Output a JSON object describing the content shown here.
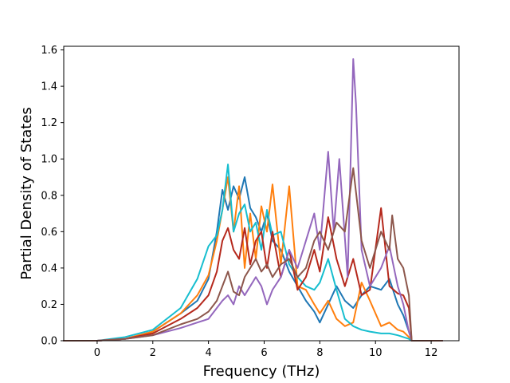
{
  "chart_data": {
    "type": "line",
    "title": "",
    "xlabel": "Frequency (THz)",
    "ylabel": "Partial Density of States",
    "xlim": [
      -1.2,
      13.0
    ],
    "ylim": [
      0.0,
      1.62
    ],
    "grid": false,
    "legend": "none",
    "x_ticks": [
      0,
      2,
      4,
      6,
      8,
      10,
      12
    ],
    "x_tick_labels": [
      "0",
      "2",
      "4",
      "6",
      "8",
      "10",
      "12"
    ],
    "y_ticks": [
      0.0,
      0.2,
      0.4,
      0.6,
      0.8,
      1.0,
      1.2,
      1.4,
      1.6
    ],
    "y_tick_labels": [
      "0.0",
      "0.2",
      "0.4",
      "0.6",
      "0.8",
      "1.0",
      "1.2",
      "1.4",
      "1.6"
    ],
    "series": [
      {
        "color": "#1f77b4",
        "x": [
          -1.2,
          0,
          1,
          2,
          3,
          3.6,
          4.0,
          4.3,
          4.5,
          4.7,
          4.9,
          5.1,
          5.3,
          5.5,
          5.7,
          5.9,
          6.1,
          6.3,
          6.6,
          6.9,
          7.2,
          7.5,
          7.8,
          8.0,
          8.3,
          8.6,
          8.9,
          9.2,
          9.5,
          9.8,
          10.2,
          10.5,
          10.8,
          11.0,
          11.2,
          11.3,
          12.4
        ],
        "y": [
          0.0,
          0.0,
          0.01,
          0.05,
          0.15,
          0.22,
          0.34,
          0.6,
          0.83,
          0.72,
          0.85,
          0.78,
          0.9,
          0.73,
          0.68,
          0.6,
          0.7,
          0.55,
          0.5,
          0.38,
          0.3,
          0.22,
          0.16,
          0.1,
          0.2,
          0.3,
          0.22,
          0.18,
          0.25,
          0.3,
          0.28,
          0.34,
          0.2,
          0.14,
          0.05,
          0.0,
          0.0
        ]
      },
      {
        "color": "#ff7f0e",
        "x": [
          -1.2,
          0,
          1,
          2,
          3,
          3.6,
          4.0,
          4.3,
          4.5,
          4.7,
          4.9,
          5.1,
          5.3,
          5.5,
          5.7,
          5.9,
          6.1,
          6.3,
          6.6,
          6.9,
          7.2,
          7.5,
          7.8,
          8.0,
          8.3,
          8.6,
          8.9,
          9.2,
          9.5,
          9.8,
          10.2,
          10.5,
          10.8,
          11.0,
          11.2,
          11.3,
          12.4
        ],
        "y": [
          0.0,
          0.0,
          0.01,
          0.05,
          0.15,
          0.25,
          0.36,
          0.55,
          0.72,
          0.9,
          0.6,
          0.85,
          0.4,
          0.7,
          0.45,
          0.74,
          0.6,
          0.86,
          0.42,
          0.85,
          0.3,
          0.28,
          0.2,
          0.15,
          0.22,
          0.12,
          0.08,
          0.1,
          0.32,
          0.22,
          0.08,
          0.1,
          0.06,
          0.05,
          0.02,
          0.0,
          0.0
        ]
      },
      {
        "color": "#17becf",
        "x": [
          -1.2,
          0,
          1,
          2,
          3,
          3.6,
          4.0,
          4.3,
          4.5,
          4.7,
          4.9,
          5.1,
          5.3,
          5.5,
          5.7,
          5.9,
          6.1,
          6.3,
          6.6,
          6.9,
          7.2,
          7.5,
          7.8,
          8.0,
          8.3,
          8.6,
          8.9,
          9.2,
          9.5,
          9.8,
          10.2,
          10.5,
          10.8,
          11.0,
          11.2,
          11.3,
          12.4
        ],
        "y": [
          0.0,
          0.0,
          0.02,
          0.06,
          0.18,
          0.34,
          0.52,
          0.58,
          0.72,
          0.97,
          0.6,
          0.7,
          0.75,
          0.6,
          0.65,
          0.5,
          0.72,
          0.58,
          0.6,
          0.42,
          0.35,
          0.3,
          0.28,
          0.32,
          0.45,
          0.28,
          0.12,
          0.08,
          0.06,
          0.05,
          0.04,
          0.04,
          0.03,
          0.02,
          0.01,
          0.0,
          0.0
        ]
      },
      {
        "color": "#b5281c",
        "x": [
          -1.2,
          0,
          1,
          2,
          3,
          3.6,
          4.0,
          4.3,
          4.5,
          4.7,
          4.9,
          5.1,
          5.3,
          5.5,
          5.7,
          5.9,
          6.1,
          6.3,
          6.6,
          6.9,
          7.2,
          7.5,
          7.8,
          8.0,
          8.3,
          8.6,
          8.9,
          9.2,
          9.5,
          9.8,
          10.2,
          10.5,
          10.8,
          11.0,
          11.2,
          11.3,
          12.4
        ],
        "y": [
          0.0,
          0.0,
          0.01,
          0.04,
          0.12,
          0.18,
          0.25,
          0.38,
          0.55,
          0.62,
          0.5,
          0.45,
          0.62,
          0.42,
          0.55,
          0.6,
          0.4,
          0.6,
          0.35,
          0.5,
          0.28,
          0.35,
          0.5,
          0.38,
          0.68,
          0.45,
          0.3,
          0.45,
          0.25,
          0.28,
          0.73,
          0.3,
          0.26,
          0.25,
          0.18,
          0.0,
          0.0
        ]
      },
      {
        "color": "#9467bd",
        "x": [
          -1.2,
          0,
          1,
          2,
          3,
          3.6,
          4.0,
          4.3,
          4.5,
          4.7,
          4.9,
          5.1,
          5.3,
          5.5,
          5.7,
          5.9,
          6.1,
          6.3,
          6.6,
          6.9,
          7.2,
          7.5,
          7.8,
          8.0,
          8.3,
          8.5,
          8.7,
          9.0,
          9.2,
          9.3,
          9.5,
          9.8,
          10.2,
          10.5,
          10.8,
          11.0,
          11.2,
          11.3,
          12.4
        ],
        "y": [
          0.0,
          0.0,
          0.01,
          0.03,
          0.07,
          0.1,
          0.12,
          0.18,
          0.22,
          0.25,
          0.2,
          0.3,
          0.25,
          0.3,
          0.35,
          0.3,
          0.2,
          0.28,
          0.35,
          0.5,
          0.4,
          0.55,
          0.7,
          0.5,
          1.04,
          0.6,
          1.0,
          0.35,
          1.55,
          1.3,
          0.5,
          0.3,
          0.4,
          0.52,
          0.3,
          0.2,
          0.05,
          0.0,
          0.0
        ]
      },
      {
        "color": "#8c564b",
        "x": [
          -1.2,
          0,
          1,
          2,
          3,
          3.6,
          4.0,
          4.3,
          4.5,
          4.7,
          4.9,
          5.1,
          5.3,
          5.5,
          5.7,
          5.9,
          6.1,
          6.3,
          6.6,
          6.9,
          7.2,
          7.5,
          7.8,
          8.0,
          8.3,
          8.6,
          8.9,
          9.2,
          9.5,
          9.8,
          10.2,
          10.5,
          10.6,
          10.8,
          11.0,
          11.2,
          11.3,
          12.4
        ],
        "y": [
          0.0,
          0.0,
          0.01,
          0.03,
          0.09,
          0.12,
          0.16,
          0.22,
          0.3,
          0.38,
          0.27,
          0.25,
          0.35,
          0.4,
          0.45,
          0.38,
          0.42,
          0.35,
          0.42,
          0.45,
          0.35,
          0.4,
          0.55,
          0.6,
          0.5,
          0.65,
          0.6,
          0.95,
          0.55,
          0.4,
          0.6,
          0.5,
          0.69,
          0.45,
          0.4,
          0.25,
          0.0,
          0.0
        ]
      }
    ]
  }
}
